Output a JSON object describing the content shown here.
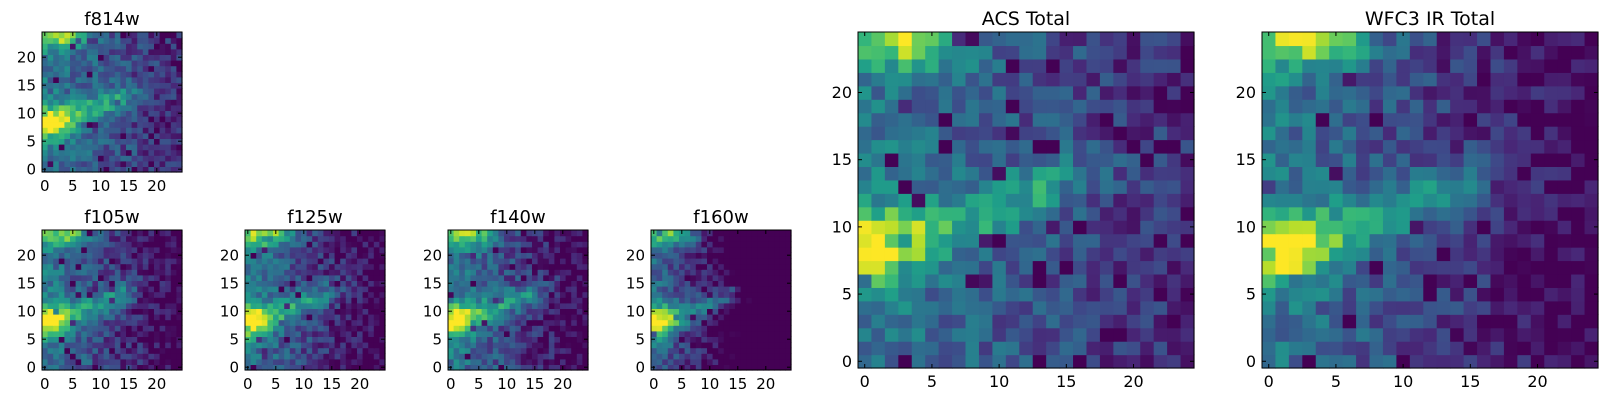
{
  "colormap": "viridis",
  "colors": {
    "frame": "#000000",
    "background": "#ffffff"
  },
  "chart_data": [
    {
      "id": "f814w",
      "type": "heatmap",
      "title": "f814w",
      "grid": false,
      "xlim": [
        -0.5,
        24.5
      ],
      "ylim": [
        -0.5,
        24.5
      ],
      "xticks": [
        "0",
        "5",
        "10",
        "15",
        "20"
      ],
      "yticks": [
        "0",
        "5",
        "10",
        "15",
        "20"
      ],
      "seed": 11,
      "prof": "acs",
      "size": "small"
    },
    {
      "id": "f105w",
      "type": "heatmap",
      "title": "f105w",
      "grid": false,
      "xlim": [
        -0.5,
        24.5
      ],
      "ylim": [
        -0.5,
        24.5
      ],
      "xticks": [
        "0",
        "5",
        "10",
        "15",
        "20"
      ],
      "yticks": [
        "0",
        "5",
        "10",
        "15",
        "20"
      ],
      "seed": 23,
      "prof": "ir",
      "size": "small"
    },
    {
      "id": "f125w",
      "type": "heatmap",
      "title": "f125w",
      "grid": false,
      "xlim": [
        -0.5,
        24.5
      ],
      "ylim": [
        -0.5,
        24.5
      ],
      "xticks": [
        "0",
        "5",
        "10",
        "15",
        "20"
      ],
      "yticks": [
        "0",
        "5",
        "10",
        "15",
        "20"
      ],
      "seed": 37,
      "prof": "ir",
      "size": "small"
    },
    {
      "id": "f140w",
      "type": "heatmap",
      "title": "f140w",
      "grid": false,
      "xlim": [
        -0.5,
        24.5
      ],
      "ylim": [
        -0.5,
        24.5
      ],
      "xticks": [
        "0",
        "5",
        "10",
        "15",
        "20"
      ],
      "yticks": [
        "0",
        "5",
        "10",
        "15",
        "20"
      ],
      "seed": 41,
      "prof": "ir",
      "size": "small"
    },
    {
      "id": "f160w",
      "type": "heatmap",
      "title": "f160w",
      "grid": false,
      "xlim": [
        -0.5,
        24.5
      ],
      "ylim": [
        -0.5,
        24.5
      ],
      "xticks": [
        "0",
        "5",
        "10",
        "15",
        "20"
      ],
      "yticks": [
        "0",
        "5",
        "10",
        "15",
        "20"
      ],
      "seed": 53,
      "prof": "ir_dark",
      "size": "small"
    },
    {
      "id": "acs-total",
      "type": "heatmap",
      "title": "ACS Total",
      "grid": false,
      "xlim": [
        -0.5,
        24.5
      ],
      "ylim": [
        -0.5,
        24.5
      ],
      "xticks": [
        "0",
        "5",
        "10",
        "15",
        "20"
      ],
      "yticks": [
        "0",
        "5",
        "10",
        "15",
        "20"
      ],
      "seed": 67,
      "prof": "acs",
      "size": "large"
    },
    {
      "id": "wfc3-ir-total",
      "type": "heatmap",
      "title": "WFC3 IR Total",
      "grid": false,
      "xlim": [
        -0.5,
        24.5
      ],
      "ylim": [
        -0.5,
        24.5
      ],
      "xticks": [
        "0",
        "5",
        "10",
        "15",
        "20"
      ],
      "yticks": [
        "0",
        "5",
        "10",
        "15",
        "20"
      ],
      "seed": 79,
      "prof": "ir",
      "size": "large"
    }
  ]
}
